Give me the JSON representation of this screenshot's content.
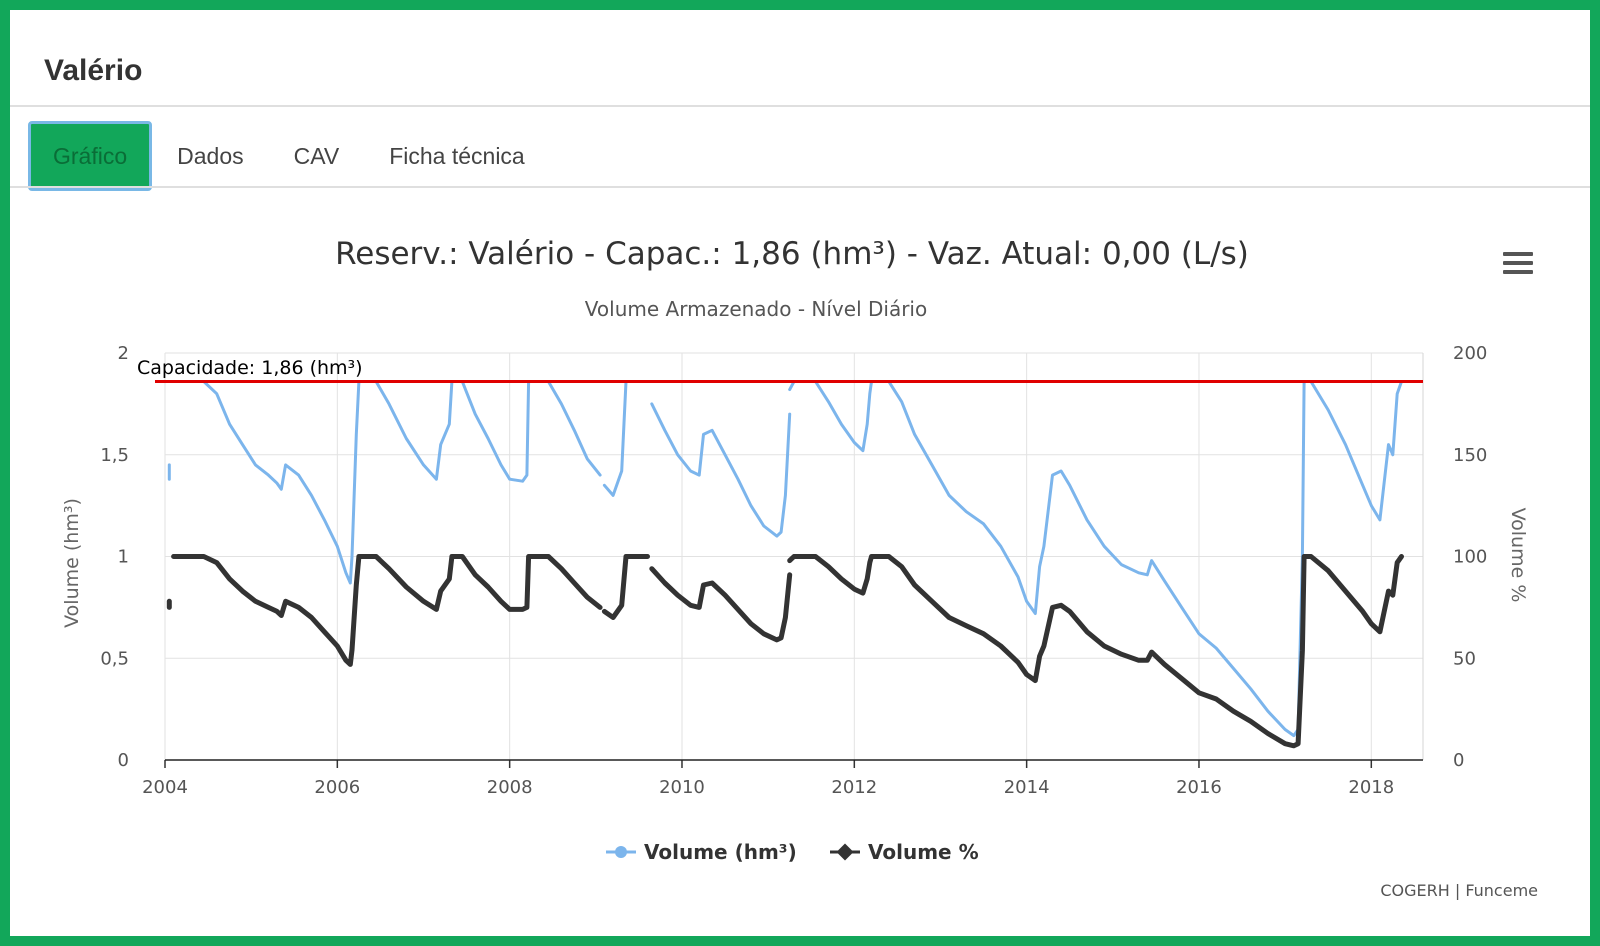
{
  "page": {
    "title": "Valério"
  },
  "tabs": [
    {
      "label": "Gráfico",
      "active": true
    },
    {
      "label": "Dados",
      "active": false
    },
    {
      "label": "CAV",
      "active": false
    },
    {
      "label": "Ficha técnica",
      "active": false
    }
  ],
  "menu_icon": "hamburger-menu-icon",
  "credits": "COGERH | Funceme",
  "colors": {
    "frame": "#12a75a",
    "volume_hm3": "#7cb5ec",
    "volume_pct": "#333333",
    "capacity_line": "#e00000"
  },
  "chart_data": {
    "type": "line",
    "title": "Reserv.: Valério - Capac.: 1,86 (hm³) - Vaz. Atual: 0,00 (L/s)",
    "subtitle": "Volume Armazenado - Nível Diário",
    "ylabel": "Volume (hm³)",
    "y2label": "Volume %",
    "ylim": [
      0,
      2
    ],
    "y2lim": [
      0,
      200
    ],
    "xlim": [
      2004.0,
      2018.6
    ],
    "x_ticks": [
      "2004",
      "2006",
      "2008",
      "2010",
      "2012",
      "2014",
      "2016",
      "2018"
    ],
    "y_ticks": [
      "0",
      "0,5",
      "1",
      "1,5",
      "2"
    ],
    "y2_ticks": [
      "0",
      "50",
      "100",
      "150",
      "200"
    ],
    "grid": true,
    "legend_position": "bottom-center",
    "capacity_line": {
      "value": 1.86,
      "label": "Capacidade: 1,86 (hm³)"
    },
    "series": [
      {
        "name": "Volume (hm³)",
        "axis": "left",
        "segments": [
          [
            [
              2004.05,
              1.38
            ],
            [
              2004.05,
              1.45
            ]
          ],
          [
            [
              2004.1,
              1.86
            ],
            [
              2004.45,
              1.86
            ],
            [
              2004.6,
              1.8
            ],
            [
              2004.75,
              1.65
            ],
            [
              2004.9,
              1.55
            ],
            [
              2005.05,
              1.45
            ],
            [
              2005.2,
              1.4
            ],
            [
              2005.3,
              1.36
            ],
            [
              2005.35,
              1.33
            ],
            [
              2005.4,
              1.45
            ],
            [
              2005.55,
              1.4
            ],
            [
              2005.7,
              1.3
            ],
            [
              2005.85,
              1.18
            ],
            [
              2006.0,
              1.05
            ],
            [
              2006.1,
              0.92
            ],
            [
              2006.15,
              0.87
            ],
            [
              2006.17,
              1.0
            ],
            [
              2006.22,
              1.6
            ],
            [
              2006.25,
              1.86
            ],
            [
              2006.45,
              1.86
            ],
            [
              2006.6,
              1.75
            ],
            [
              2006.8,
              1.58
            ],
            [
              2007.0,
              1.45
            ],
            [
              2007.15,
              1.38
            ],
            [
              2007.2,
              1.55
            ],
            [
              2007.3,
              1.65
            ],
            [
              2007.33,
              1.86
            ],
            [
              2007.45,
              1.86
            ],
            [
              2007.6,
              1.7
            ],
            [
              2007.75,
              1.58
            ],
            [
              2007.9,
              1.45
            ],
            [
              2008.0,
              1.38
            ],
            [
              2008.15,
              1.37
            ],
            [
              2008.2,
              1.4
            ],
            [
              2008.22,
              1.86
            ],
            [
              2008.45,
              1.86
            ],
            [
              2008.6,
              1.75
            ],
            [
              2008.75,
              1.62
            ],
            [
              2008.9,
              1.48
            ],
            [
              2009.05,
              1.4
            ]
          ],
          [
            [
              2009.1,
              1.35
            ],
            [
              2009.2,
              1.3
            ],
            [
              2009.3,
              1.42
            ],
            [
              2009.35,
              1.86
            ],
            [
              2009.6,
              1.86
            ]
          ],
          [
            [
              2009.65,
              1.75
            ],
            [
              2009.8,
              1.62
            ],
            [
              2009.95,
              1.5
            ],
            [
              2010.1,
              1.42
            ],
            [
              2010.2,
              1.4
            ],
            [
              2010.25,
              1.6
            ],
            [
              2010.35,
              1.62
            ],
            [
              2010.5,
              1.5
            ],
            [
              2010.65,
              1.38
            ],
            [
              2010.8,
              1.25
            ],
            [
              2010.95,
              1.15
            ],
            [
              2011.1,
              1.1
            ],
            [
              2011.15,
              1.12
            ],
            [
              2011.2,
              1.3
            ],
            [
              2011.25,
              1.7
            ]
          ],
          [
            [
              2011.25,
              1.82
            ],
            [
              2011.3,
              1.86
            ],
            [
              2011.55,
              1.86
            ],
            [
              2011.7,
              1.76
            ],
            [
              2011.85,
              1.65
            ],
            [
              2012.0,
              1.56
            ],
            [
              2012.1,
              1.52
            ],
            [
              2012.15,
              1.65
            ],
            [
              2012.18,
              1.8
            ],
            [
              2012.2,
              1.86
            ],
            [
              2012.4,
              1.86
            ],
            [
              2012.55,
              1.76
            ],
            [
              2012.7,
              1.6
            ],
            [
              2012.9,
              1.45
            ],
            [
              2013.1,
              1.3
            ],
            [
              2013.3,
              1.22
            ],
            [
              2013.5,
              1.16
            ],
            [
              2013.7,
              1.05
            ],
            [
              2013.9,
              0.9
            ],
            [
              2014.0,
              0.78
            ],
            [
              2014.1,
              0.72
            ],
            [
              2014.15,
              0.95
            ],
            [
              2014.2,
              1.05
            ],
            [
              2014.3,
              1.4
            ],
            [
              2014.4,
              1.42
            ],
            [
              2014.5,
              1.35
            ],
            [
              2014.7,
              1.18
            ],
            [
              2014.9,
              1.05
            ],
            [
              2015.1,
              0.96
            ],
            [
              2015.3,
              0.92
            ],
            [
              2015.4,
              0.91
            ],
            [
              2015.45,
              0.98
            ],
            [
              2015.6,
              0.88
            ],
            [
              2015.8,
              0.75
            ],
            [
              2016.0,
              0.62
            ],
            [
              2016.2,
              0.55
            ],
            [
              2016.4,
              0.45
            ],
            [
              2016.6,
              0.35
            ],
            [
              2016.8,
              0.24
            ],
            [
              2017.0,
              0.15
            ],
            [
              2017.1,
              0.12
            ],
            [
              2017.15,
              0.15
            ],
            [
              2017.2,
              1.0
            ],
            [
              2017.22,
              1.86
            ],
            [
              2017.3,
              1.86
            ],
            [
              2017.5,
              1.72
            ],
            [
              2017.7,
              1.55
            ],
            [
              2017.9,
              1.35
            ],
            [
              2018.0,
              1.25
            ],
            [
              2018.1,
              1.18
            ],
            [
              2018.2,
              1.55
            ],
            [
              2018.25,
              1.5
            ],
            [
              2018.3,
              1.8
            ],
            [
              2018.35,
              1.86
            ]
          ]
        ]
      },
      {
        "name": "Volume %",
        "axis": "right",
        "segments": [
          [
            [
              2004.05,
              75
            ],
            [
              2004.05,
              78
            ]
          ],
          [
            [
              2004.1,
              100
            ],
            [
              2004.45,
              100
            ],
            [
              2004.6,
              97
            ],
            [
              2004.75,
              89
            ],
            [
              2004.9,
              83
            ],
            [
              2005.05,
              78
            ],
            [
              2005.2,
              75
            ],
            [
              2005.3,
              73
            ],
            [
              2005.35,
              71
            ],
            [
              2005.4,
              78
            ],
            [
              2005.55,
              75
            ],
            [
              2005.7,
              70
            ],
            [
              2005.85,
              63
            ],
            [
              2006.0,
              56
            ],
            [
              2006.1,
              49
            ],
            [
              2006.15,
              47
            ],
            [
              2006.17,
              54
            ],
            [
              2006.22,
              86
            ],
            [
              2006.25,
              100
            ],
            [
              2006.45,
              100
            ],
            [
              2006.6,
              94
            ],
            [
              2006.8,
              85
            ],
            [
              2007.0,
              78
            ],
            [
              2007.15,
              74
            ],
            [
              2007.2,
              83
            ],
            [
              2007.3,
              89
            ],
            [
              2007.33,
              100
            ],
            [
              2007.45,
              100
            ],
            [
              2007.6,
              91
            ],
            [
              2007.75,
              85
            ],
            [
              2007.9,
              78
            ],
            [
              2008.0,
              74
            ],
            [
              2008.15,
              74
            ],
            [
              2008.2,
              75
            ],
            [
              2008.22,
              100
            ],
            [
              2008.45,
              100
            ],
            [
              2008.6,
              94
            ],
            [
              2008.75,
              87
            ],
            [
              2008.9,
              80
            ],
            [
              2009.05,
              75
            ]
          ],
          [
            [
              2009.1,
              73
            ],
            [
              2009.2,
              70
            ],
            [
              2009.3,
              76
            ],
            [
              2009.35,
              100
            ],
            [
              2009.6,
              100
            ]
          ],
          [
            [
              2009.65,
              94
            ],
            [
              2009.8,
              87
            ],
            [
              2009.95,
              81
            ],
            [
              2010.1,
              76
            ],
            [
              2010.2,
              75
            ],
            [
              2010.25,
              86
            ],
            [
              2010.35,
              87
            ],
            [
              2010.5,
              81
            ],
            [
              2010.65,
              74
            ],
            [
              2010.8,
              67
            ],
            [
              2010.95,
              62
            ],
            [
              2011.1,
              59
            ],
            [
              2011.15,
              60
            ],
            [
              2011.2,
              70
            ],
            [
              2011.25,
              91
            ]
          ],
          [
            [
              2011.25,
              98
            ],
            [
              2011.3,
              100
            ],
            [
              2011.55,
              100
            ],
            [
              2011.7,
              95
            ],
            [
              2011.85,
              89
            ],
            [
              2012.0,
              84
            ],
            [
              2012.1,
              82
            ],
            [
              2012.15,
              89
            ],
            [
              2012.18,
              97
            ],
            [
              2012.2,
              100
            ],
            [
              2012.4,
              100
            ],
            [
              2012.55,
              95
            ],
            [
              2012.7,
              86
            ],
            [
              2012.9,
              78
            ],
            [
              2013.1,
              70
            ],
            [
              2013.3,
              66
            ],
            [
              2013.5,
              62
            ],
            [
              2013.7,
              56
            ],
            [
              2013.9,
              48
            ],
            [
              2014.0,
              42
            ],
            [
              2014.1,
              39
            ],
            [
              2014.15,
              51
            ],
            [
              2014.2,
              56
            ],
            [
              2014.3,
              75
            ],
            [
              2014.4,
              76
            ],
            [
              2014.5,
              73
            ],
            [
              2014.7,
              63
            ],
            [
              2014.9,
              56
            ],
            [
              2015.1,
              52
            ],
            [
              2015.3,
              49
            ],
            [
              2015.4,
              49
            ],
            [
              2015.45,
              53
            ],
            [
              2015.6,
              47
            ],
            [
              2015.8,
              40
            ],
            [
              2016.0,
              33
            ],
            [
              2016.2,
              30
            ],
            [
              2016.4,
              24
            ],
            [
              2016.6,
              19
            ],
            [
              2016.8,
              13
            ],
            [
              2017.0,
              8
            ],
            [
              2017.1,
              7
            ],
            [
              2017.15,
              8
            ],
            [
              2017.2,
              54
            ],
            [
              2017.22,
              100
            ],
            [
              2017.3,
              100
            ],
            [
              2017.5,
              93
            ],
            [
              2017.7,
              83
            ],
            [
              2017.9,
              73
            ],
            [
              2018.0,
              67
            ],
            [
              2018.1,
              63
            ],
            [
              2018.2,
              83
            ],
            [
              2018.25,
              81
            ],
            [
              2018.3,
              97
            ],
            [
              2018.35,
              100
            ]
          ]
        ]
      }
    ]
  }
}
